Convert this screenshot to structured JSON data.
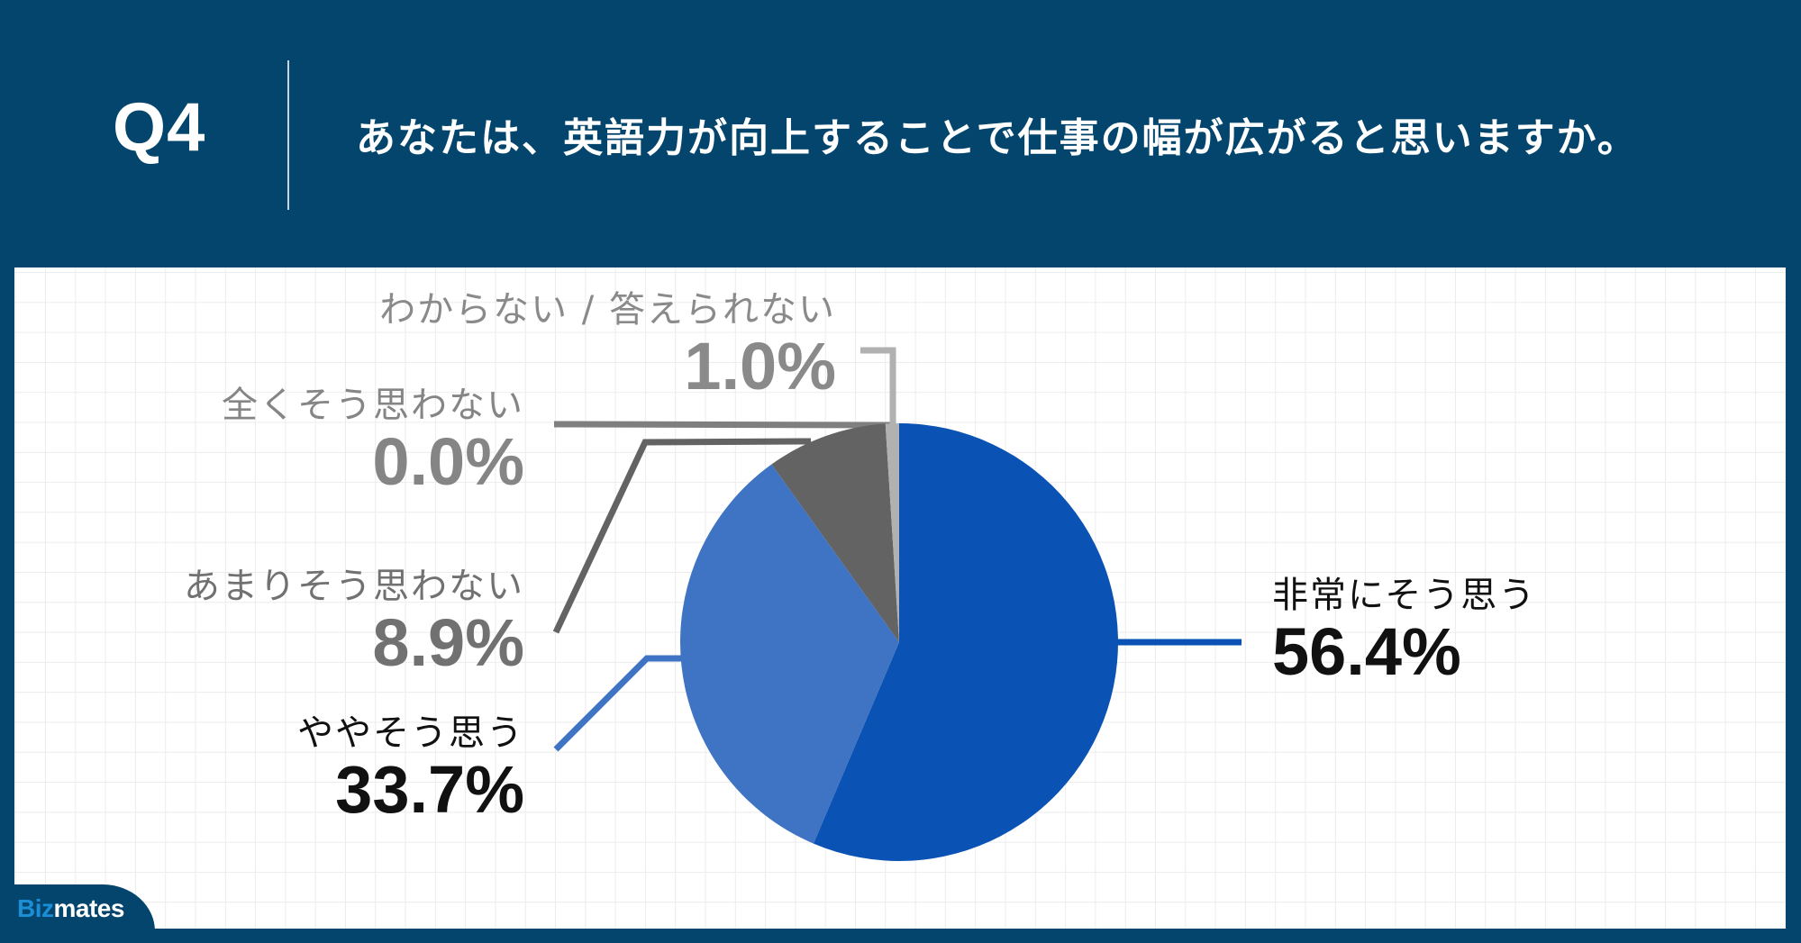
{
  "header": {
    "question_number": "Q4",
    "question_text": "あなたは、英語力が向上することで仕事の幅が広がると思いますか。"
  },
  "colors": {
    "background": "#03456d",
    "panel": "#ffffff",
    "grid": "#ececec"
  },
  "logo": {
    "part1": "Biz",
    "part2": "mates"
  },
  "chart_data": {
    "type": "pie",
    "title": "あなたは、英語力が向上することで仕事の幅が広がると思いますか。",
    "start_angle_deg": 0,
    "direction": "clockwise",
    "legend": "none (data labels with leader lines)",
    "categories": [
      "非常にそう思う",
      "ややそう思う",
      "あまりそう思わない",
      "全くそう思わない",
      "わからない / 答えられない"
    ],
    "values": [
      56.4,
      33.7,
      8.9,
      0.0,
      1.0
    ],
    "value_labels": [
      "56.4%",
      "33.7%",
      "8.9%",
      "0.0%",
      "1.0%"
    ],
    "slice_colors": [
      "#0a52b3",
      "#3f74c4",
      "#636363",
      "#7f7f7f",
      "#b1b1b1"
    ],
    "label_colors": [
      "#111111",
      "#111111",
      "#717171",
      "#858585",
      "#8a8a8a"
    ],
    "unit": "%"
  }
}
